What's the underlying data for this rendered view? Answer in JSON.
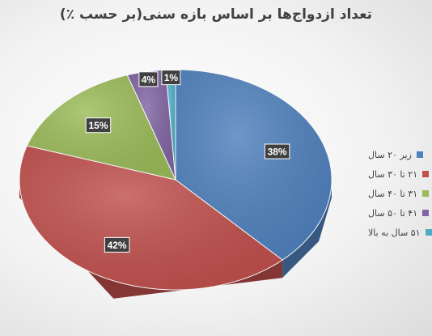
{
  "chart_data": {
    "type": "pie",
    "title": "تعداد ازدواج‌ها بر اساس بازه سنی(بر حسب ٪)",
    "categories": [
      "زیر ۲۰ سال",
      "۲۱ تا ۳۰ سال",
      "۳۱ تا ۴۰ سال",
      "۴۱ تا ۵۰ سال",
      "۵۱ سال به بالا"
    ],
    "values": [
      38,
      42,
      15,
      4,
      1
    ],
    "data_labels": [
      "38%",
      "42%",
      "15%",
      "4%",
      "1%"
    ],
    "colors": [
      "#4f81bd",
      "#c0504d",
      "#9bbb59",
      "#8064a2",
      "#4bacc6"
    ],
    "legend_position": "right",
    "style": "3d"
  }
}
